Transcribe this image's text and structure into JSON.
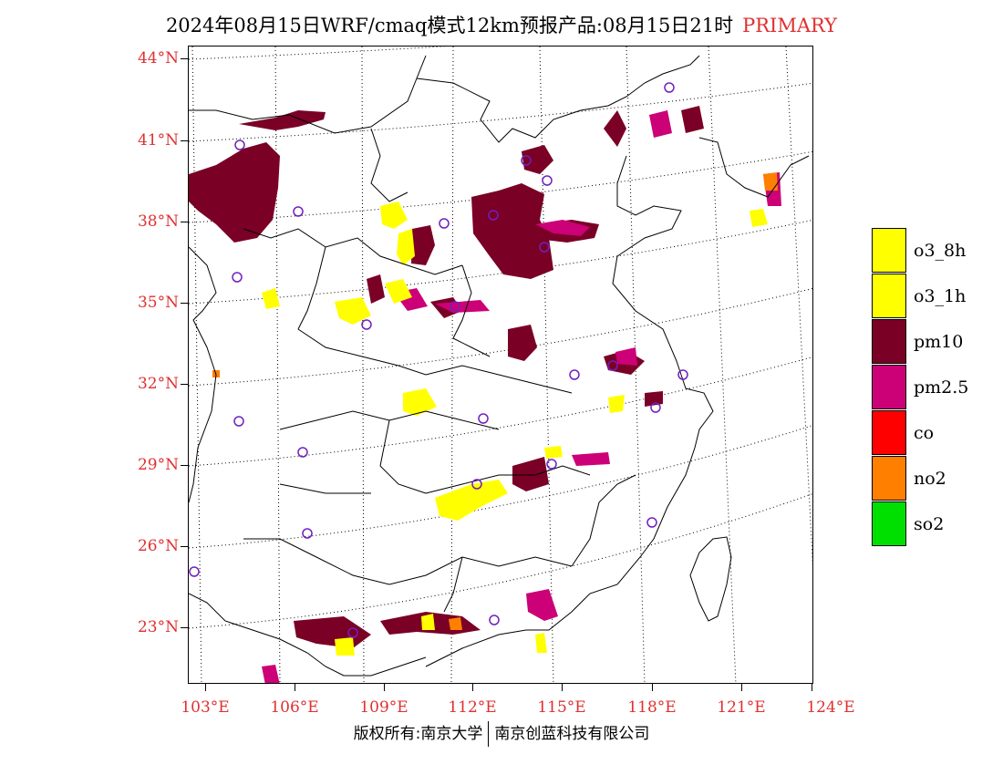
{
  "title": {
    "text": "2024年08月15日WRF/cmaq模式12km预报产品:08月15日21时",
    "tag": "PRIMARY"
  },
  "axes": {
    "latitudes": [
      "44°N",
      "41°N",
      "38°N",
      "35°N",
      "32°N",
      "29°N",
      "26°N",
      "23°N"
    ],
    "longitudes": [
      "103°E",
      "106°E",
      "109°E",
      "112°E",
      "115°E",
      "118°E",
      "121°E",
      "124°E"
    ]
  },
  "legend": [
    {
      "label": "o3_8h",
      "color": "#ffff00"
    },
    {
      "label": "o3_1h",
      "color": "#ffff00"
    },
    {
      "label": "pm10",
      "color": "#7a0026"
    },
    {
      "label": "pm2.5",
      "color": "#cc0077"
    },
    {
      "label": "co",
      "color": "#ff0000"
    },
    {
      "label": "no2",
      "color": "#ff7f00"
    },
    {
      "label": "so2",
      "color": "#00e000"
    }
  ],
  "footer": {
    "left": "版权所有:南京大学",
    "right": "南京创蓝科技有限公司"
  }
}
